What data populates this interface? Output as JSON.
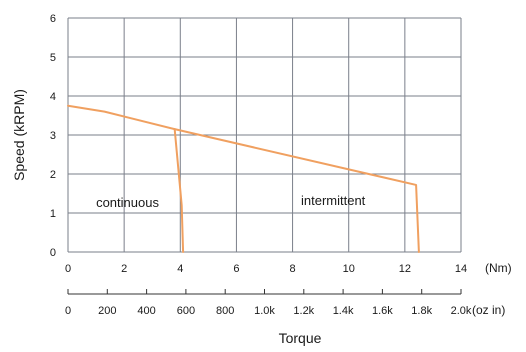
{
  "chart_data": {
    "type": "line",
    "ylabel": "Speed (kRPM)",
    "xlabel": "Torque",
    "x_unit": "(Nm)",
    "x2_unit": "(oz in)",
    "xlim": [
      0,
      14
    ],
    "ylim": [
      0,
      6
    ],
    "x_ticks": [
      "0",
      "2",
      "4",
      "6",
      "8",
      "10",
      "12",
      "14"
    ],
    "y_ticks": [
      "0",
      "1",
      "2",
      "3",
      "4",
      "5",
      "6"
    ],
    "x2_ticks": [
      "0",
      "200",
      "400",
      "600",
      "800",
      "1.0k",
      "1.2k",
      "1.4k",
      "1.6k",
      "1.8k",
      "2.0k"
    ],
    "grid": true,
    "line_color": "#f0a060",
    "grid_color": "#7a7f8a",
    "series": [
      {
        "region": "continuous",
        "x": [
          0,
          1.3,
          3.8,
          4.05,
          4.1
        ],
        "y": [
          3.75,
          3.6,
          3.15,
          1.2,
          0.0
        ]
      },
      {
        "region": "intermittent",
        "x": [
          3.8,
          12.4,
          12.5
        ],
        "y": [
          3.15,
          1.72,
          0.0
        ]
      }
    ],
    "annotations": [
      {
        "text": "continuous",
        "x": 1.0,
        "y": 1.15
      },
      {
        "text": "intermittent",
        "x": 8.3,
        "y": 1.2
      }
    ]
  }
}
